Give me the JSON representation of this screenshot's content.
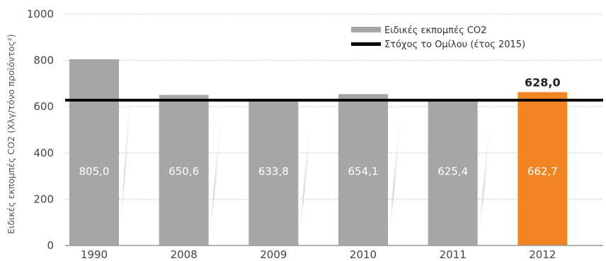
{
  "chart_data": {
    "type": "bar",
    "categories": [
      "1990",
      "2008",
      "2009",
      "2010",
      "2011",
      "2012"
    ],
    "series": [
      {
        "name": "Ειδικές εκπομπές CO2",
        "values": [
          805.0,
          650.6,
          633.8,
          654.1,
          625.4,
          662.7
        ],
        "labels": [
          "805,0",
          "650,6",
          "633,8",
          "654,1",
          "625,4",
          "662,7"
        ]
      }
    ],
    "target": {
      "name": "Στόχος το Ομίλου (έτος 2015)",
      "value": 628.0,
      "label": "628,0"
    },
    "ylabel": "Ειδικές εκπομπές CO2 (Χλγ/τόνο προϊόντος²)",
    "ylim": [
      0,
      1000
    ],
    "yticks": [
      "0",
      "200",
      "400",
      "600",
      "800",
      "1000"
    ],
    "grid": true,
    "grid_style": "dotted",
    "legend_position": "top-right",
    "colors": {
      "bar": "#a6a6a6",
      "highlight_bar": "#f08522",
      "target_line": "#000000",
      "grid": "#b5b5b5",
      "axis": "#999999"
    },
    "highlight_index": 5
  }
}
